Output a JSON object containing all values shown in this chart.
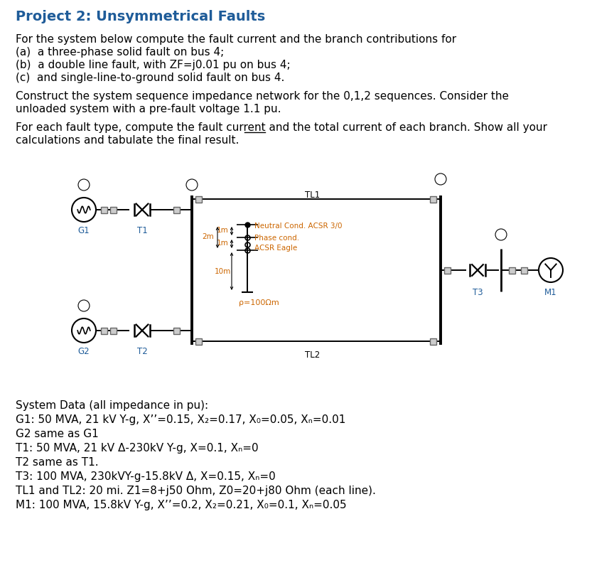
{
  "title": "Project 2: Unsymmetrical Faults",
  "title_color": "#1F5C99",
  "bg_color": "#ffffff",
  "text_color": "#000000",
  "diagram_color": "#000000",
  "label_color": "#1F5C99",
  "annotation_color": "#CC6600",
  "para1": "For the system below compute the fault current and the branch contributions for",
  "para1a": "(a)  a three-phase solid fault on bus 4;",
  "para1b": "(b)  a double line fault, with ZF=j0.01 pu on bus 4;",
  "para1c": "(c)  and single-line-to-ground solid fault on bus 4.",
  "para2a": "Construct the system sequence impedance network for the 0,1,2 sequences. Consider the",
  "para2b": "unloaded system with a pre-fault voltage 1.1 pu.",
  "para3a": "For each fault type, compute the fault current and the ",
  "para3a_underline": "total",
  "para3a_suffix": " current of each branch. Show all your",
  "para3b": "calculations and tabulate the final result.",
  "sys_data_title": "System Data (all impedance in pu):",
  "sys_data_lines": [
    "G1: 50 MVA, 21 kV Y-g, X’’=0.15, X₂=0.17, X₀=0.05, Xₙ=0.01",
    "G2 same as G1",
    "T1: 50 MVA, 21 kV Δ-230kV Y-g, X=0.1, Xₙ=0",
    "T2 same as T1.",
    "T3: 100 MVA, 230kVY-g-15.8kV Δ, X=0.15, Xₙ=0",
    "TL1 and TL2: 20 mi. Z1=8+j50 Ohm, Z0=20+j80 Ohm (each line).",
    "M1: 100 MVA, 15.8kV Y-g, X’’=0.2, X₂=0.21, X₀=0.1, Xₙ=0.05"
  ],
  "font_size_title": 14,
  "font_size_body": 11,
  "font_size_small": 9,
  "font_size_diagram": 8.5,
  "font_size_sys": 11
}
